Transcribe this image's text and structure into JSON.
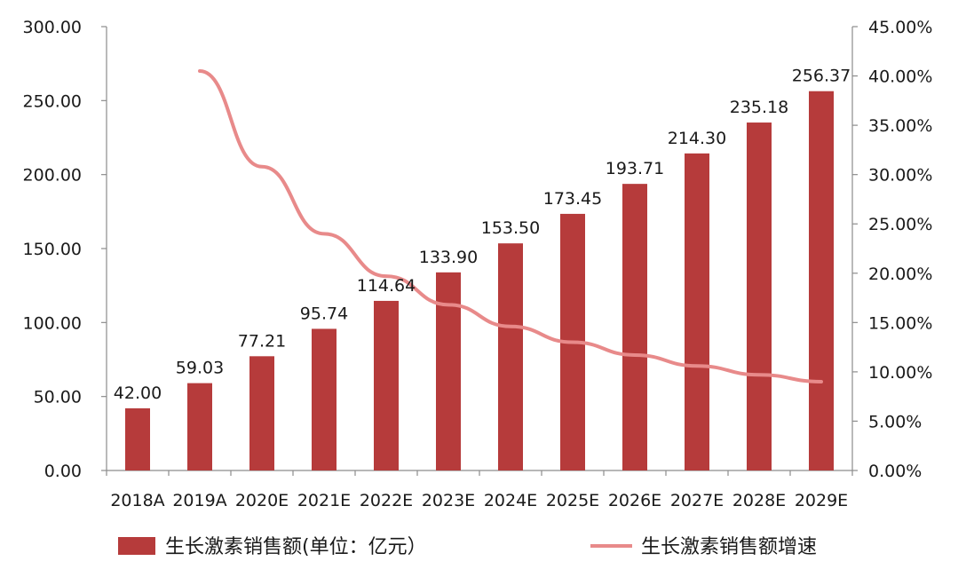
{
  "chart_data": {
    "type": "bar+line",
    "categories": [
      "2018A",
      "2019A",
      "2020E",
      "2021E",
      "2022E",
      "2023E",
      "2024E",
      "2025E",
      "2026E",
      "2027E",
      "2028E",
      "2029E"
    ],
    "series": [
      {
        "name": "生长激素销售额(单位：亿元）",
        "type": "bar",
        "axis": "left",
        "color": "#b63b3b",
        "values": [
          42.0,
          59.03,
          77.21,
          95.74,
          114.64,
          133.9,
          153.5,
          173.45,
          193.71,
          214.3,
          235.18,
          256.37
        ],
        "labels": [
          "42.00",
          "59.03",
          "77.21",
          "95.74",
          "114.64",
          "133.90",
          "153.50",
          "173.45",
          "193.71",
          "214.30",
          "235.18",
          "256.37"
        ]
      },
      {
        "name": "生长激素销售额增速",
        "type": "line",
        "axis": "right",
        "color": "#e88a8a",
        "values": [
          null,
          40.5,
          30.8,
          24.0,
          19.7,
          16.8,
          14.6,
          13.0,
          11.7,
          10.6,
          9.7,
          9.0
        ]
      }
    ],
    "y_left": {
      "min": 0,
      "max": 300,
      "ticks": [
        "0.00",
        "50.00",
        "100.00",
        "150.00",
        "200.00",
        "250.00",
        "300.00"
      ]
    },
    "y_right": {
      "min": 0,
      "max": 45,
      "ticks": [
        "0.00%",
        "5.00%",
        "10.00%",
        "15.00%",
        "20.00%",
        "25.00%",
        "30.00%",
        "35.00%",
        "40.00%",
        "45.00%"
      ]
    },
    "grid": false,
    "legend": "bottom"
  }
}
